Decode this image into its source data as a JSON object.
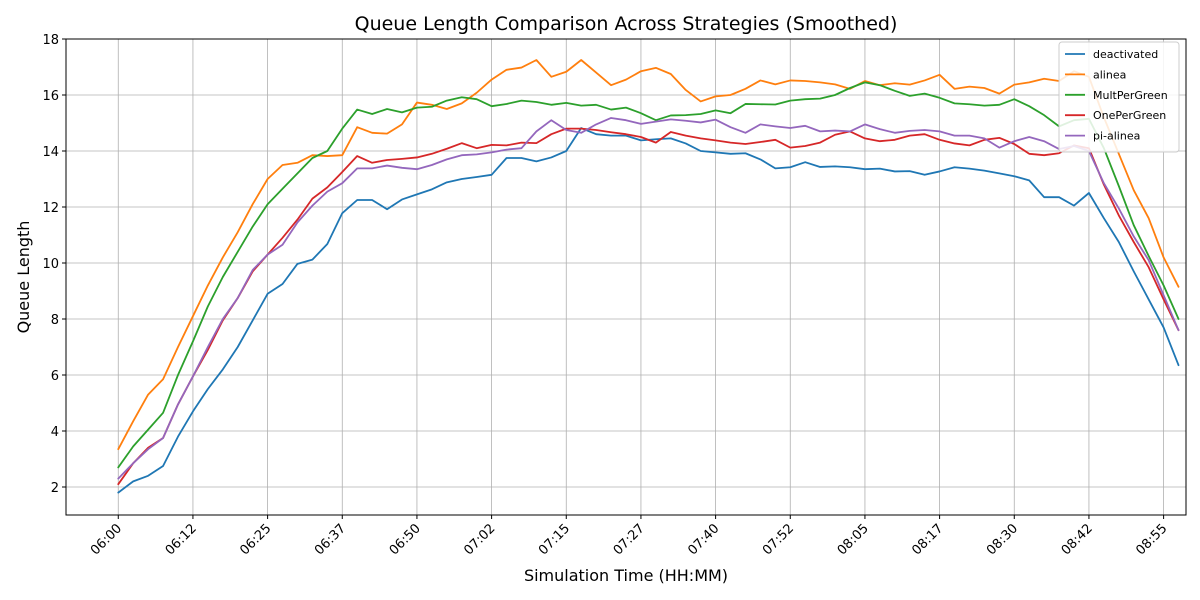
{
  "chart_data": {
    "type": "line",
    "title": "Queue Length Comparison Across Strategies (Smoothed)",
    "xlabel": "Simulation Time (HH:MM)",
    "ylabel": "Queue Length",
    "ylim": [
      1,
      18
    ],
    "xlim": [
      -3.5,
      71.5
    ],
    "grid": true,
    "legend_position": "top-right",
    "x_ticks": [
      {
        "x": 0,
        "label": "06:00"
      },
      {
        "x": 5,
        "label": "06:12"
      },
      {
        "x": 10,
        "label": "06:25"
      },
      {
        "x": 15,
        "label": "06:37"
      },
      {
        "x": 20,
        "label": "06:50"
      },
      {
        "x": 25,
        "label": "07:02"
      },
      {
        "x": 30,
        "label": "07:15"
      },
      {
        "x": 35,
        "label": "07:27"
      },
      {
        "x": 40,
        "label": "07:40"
      },
      {
        "x": 45,
        "label": "07:52"
      },
      {
        "x": 50,
        "label": "08:05"
      },
      {
        "x": 55,
        "label": "08:17"
      },
      {
        "x": 60,
        "label": "08:30"
      },
      {
        "x": 65,
        "label": "08:42"
      },
      {
        "x": 70,
        "label": "08:55"
      }
    ],
    "y_ticks": [
      2,
      4,
      6,
      8,
      10,
      12,
      14,
      16,
      18
    ],
    "series": [
      {
        "name": "deactivated",
        "color": "#1f77b4",
        "values": [
          1.8,
          2.2,
          2.4,
          2.75,
          3.8,
          4.7,
          5.5,
          6.2,
          7.0,
          7.95,
          8.9,
          9.25,
          9.97,
          10.12,
          10.68,
          11.78,
          12.25,
          12.25,
          11.92,
          12.27,
          12.45,
          12.63,
          12.88,
          13.0,
          13.07,
          13.15,
          13.75,
          13.75,
          13.63,
          13.77,
          14.0,
          14.82,
          14.6,
          14.55,
          14.55,
          14.38,
          14.42,
          14.45,
          14.27,
          14.0,
          13.95,
          13.9,
          13.92,
          13.7,
          13.38,
          13.42,
          13.6,
          13.43,
          13.45,
          13.42,
          13.35,
          13.37,
          13.27,
          13.28,
          13.15,
          13.27,
          13.42,
          13.37,
          13.3,
          13.2,
          13.1,
          12.95,
          12.35,
          12.35,
          12.05,
          12.5,
          11.6,
          10.75,
          9.7,
          8.7,
          7.7,
          6.35
        ]
      },
      {
        "name": "alinea",
        "color": "#ff7f0e",
        "values": [
          3.35,
          4.35,
          5.3,
          5.85,
          7.0,
          8.1,
          9.2,
          10.2,
          11.1,
          12.1,
          13.0,
          13.5,
          13.58,
          13.85,
          13.82,
          13.85,
          14.85,
          14.65,
          14.62,
          14.95,
          15.73,
          15.65,
          15.5,
          15.7,
          16.08,
          16.55,
          16.9,
          16.98,
          17.25,
          16.65,
          16.83,
          17.25,
          16.8,
          16.35,
          16.55,
          16.85,
          16.97,
          16.75,
          16.18,
          15.77,
          15.95,
          16.0,
          16.22,
          16.52,
          16.38,
          16.52,
          16.5,
          16.45,
          16.38,
          16.22,
          16.5,
          16.35,
          16.42,
          16.37,
          16.52,
          16.72,
          16.22,
          16.3,
          16.25,
          16.05,
          16.37,
          16.45,
          16.58,
          16.5,
          16.85,
          16.65,
          15.2,
          13.9,
          12.6,
          11.6,
          10.2,
          9.15
        ]
      },
      {
        "name": "MultPerGreen",
        "color": "#2ca02c",
        "values": [
          2.7,
          3.45,
          4.05,
          4.65,
          6.0,
          7.2,
          8.45,
          9.5,
          10.4,
          11.3,
          12.1,
          12.65,
          13.2,
          13.75,
          14.0,
          14.8,
          15.48,
          15.32,
          15.5,
          15.38,
          15.55,
          15.58,
          15.8,
          15.92,
          15.85,
          15.6,
          15.68,
          15.8,
          15.75,
          15.65,
          15.72,
          15.62,
          15.65,
          15.48,
          15.55,
          15.35,
          15.1,
          15.27,
          15.28,
          15.32,
          15.45,
          15.35,
          15.68,
          15.67,
          15.66,
          15.8,
          15.85,
          15.87,
          16.0,
          16.25,
          16.45,
          16.35,
          16.15,
          15.97,
          16.05,
          15.9,
          15.7,
          15.67,
          15.62,
          15.65,
          15.85,
          15.6,
          15.28,
          14.88,
          15.1,
          15.15,
          14.1,
          12.75,
          11.35,
          10.25,
          9.2,
          8.0
        ]
      },
      {
        "name": "OnePerGreen",
        "color": "#d62728",
        "values": [
          2.1,
          2.85,
          3.4,
          3.75,
          4.95,
          5.95,
          6.9,
          7.95,
          8.75,
          9.7,
          10.3,
          10.9,
          11.55,
          12.3,
          12.7,
          13.25,
          13.82,
          13.58,
          13.68,
          13.72,
          13.77,
          13.9,
          14.08,
          14.28,
          14.1,
          14.22,
          14.2,
          14.3,
          14.28,
          14.6,
          14.8,
          14.8,
          14.75,
          14.67,
          14.6,
          14.5,
          14.3,
          14.68,
          14.55,
          14.45,
          14.38,
          14.3,
          14.25,
          14.32,
          14.4,
          14.12,
          14.18,
          14.3,
          14.58,
          14.7,
          14.45,
          14.35,
          14.4,
          14.55,
          14.6,
          14.4,
          14.27,
          14.2,
          14.4,
          14.47,
          14.25,
          13.9,
          13.85,
          13.92,
          14.2,
          14.1,
          12.8,
          11.7,
          10.75,
          9.85,
          8.7,
          7.6
        ]
      },
      {
        "name": "pi-alinea",
        "color": "#9467bd",
        "values": [
          2.3,
          2.85,
          3.35,
          3.75,
          4.95,
          5.95,
          7.0,
          8.0,
          8.75,
          9.75,
          10.3,
          10.65,
          11.45,
          12.05,
          12.55,
          12.85,
          13.38,
          13.38,
          13.48,
          13.4,
          13.35,
          13.5,
          13.7,
          13.85,
          13.88,
          13.95,
          14.05,
          14.1,
          14.7,
          15.1,
          14.75,
          14.65,
          14.95,
          15.18,
          15.1,
          14.97,
          15.05,
          15.13,
          15.08,
          15.02,
          15.12,
          14.85,
          14.65,
          14.95,
          14.88,
          14.82,
          14.9,
          14.7,
          14.73,
          14.7,
          14.95,
          14.78,
          14.65,
          14.72,
          14.75,
          14.7,
          14.55,
          14.55,
          14.45,
          14.12,
          14.35,
          14.5,
          14.35,
          14.07,
          14.18,
          14.0,
          12.85,
          11.95,
          10.95,
          10.1,
          8.85,
          7.6
        ]
      }
    ]
  }
}
